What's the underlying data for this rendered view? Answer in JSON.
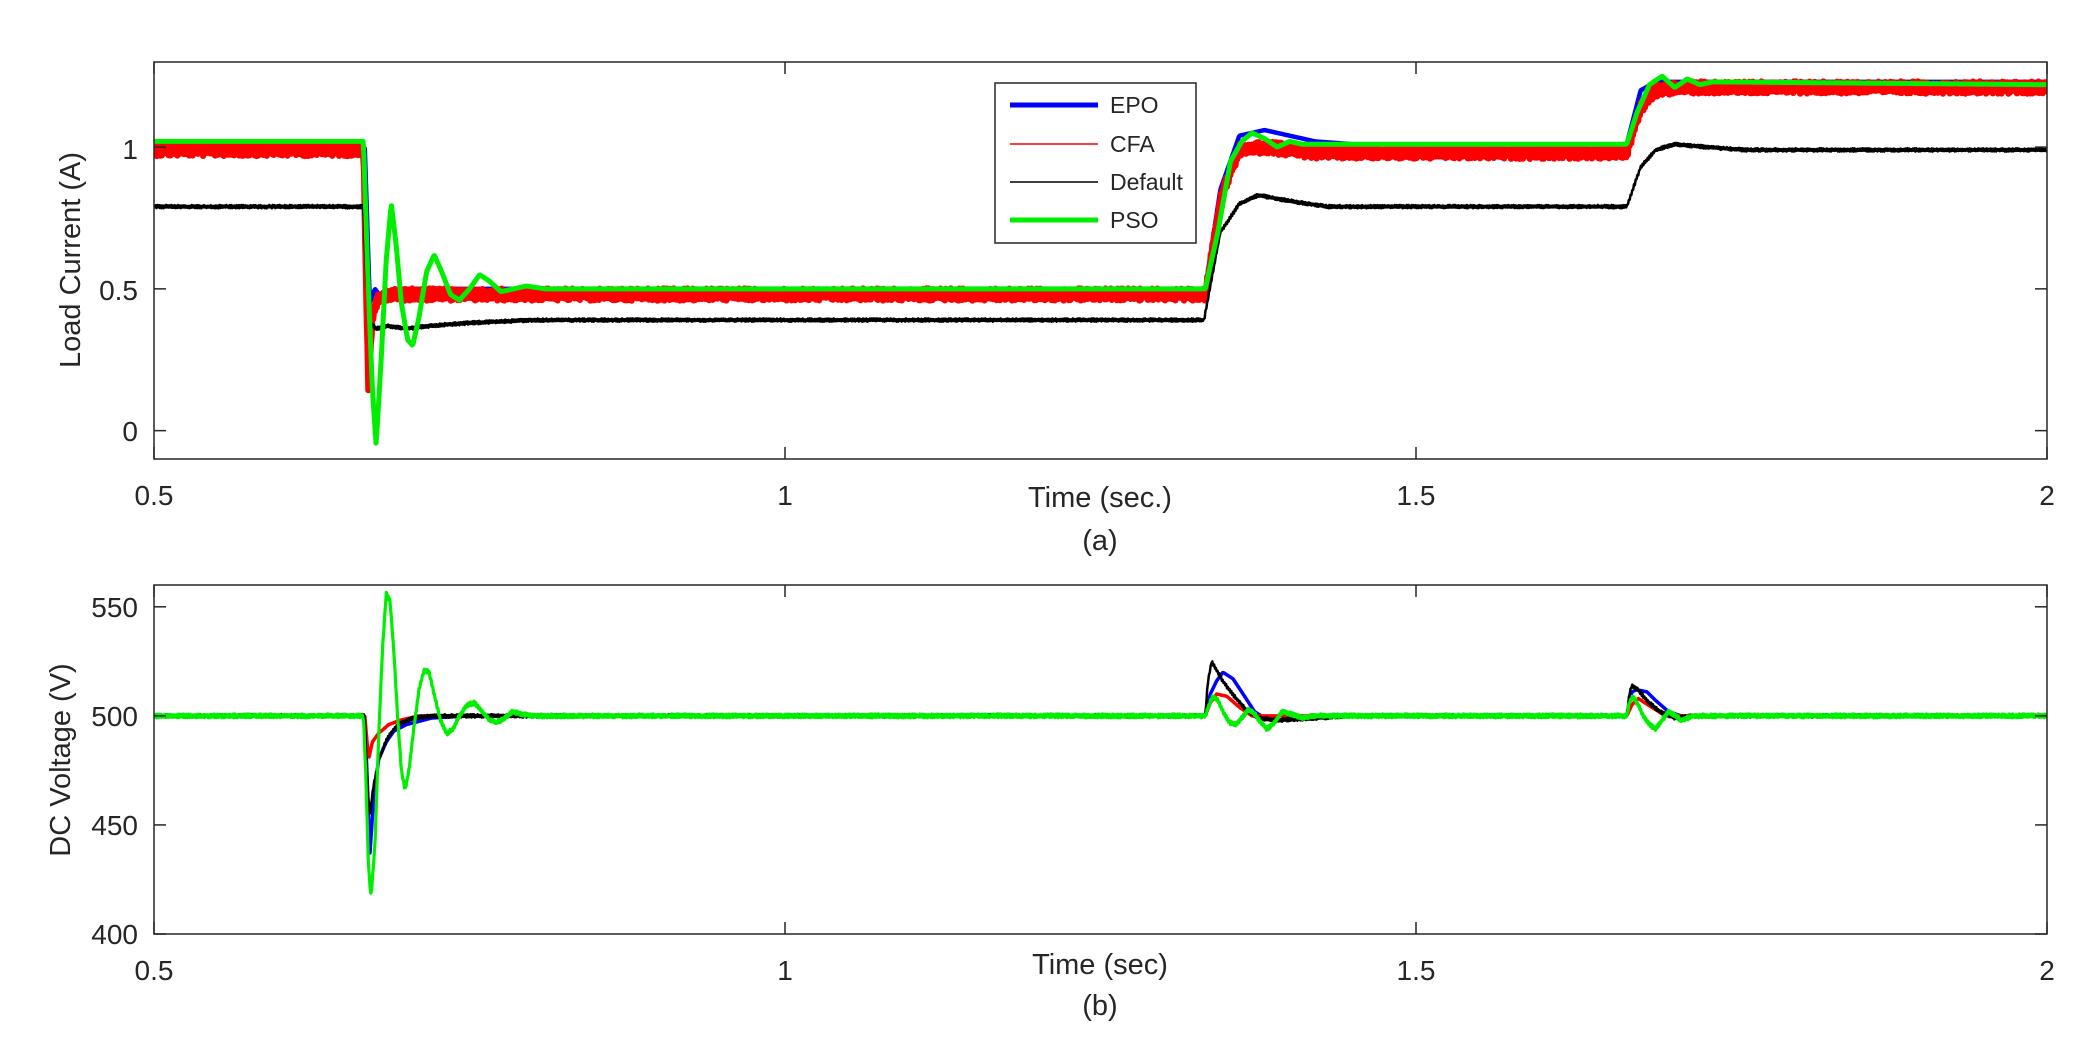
{
  "chart_data": [
    {
      "type": "line",
      "title": "",
      "xlabel": "Time (sec.)",
      "ylabel": "Load Current (A)",
      "caption": "(a)",
      "xlim": [
        0.5,
        2.0
      ],
      "ylim": [
        -0.1,
        1.3
      ],
      "xticks": [
        0.5,
        1,
        1.5,
        2
      ],
      "xtick_labels": [
        "0.5",
        "1",
        "1.5",
        "2"
      ],
      "yticks": [
        0,
        0.5,
        1
      ],
      "ytick_labels": [
        "0",
        "0.5",
        "1"
      ],
      "grid": false,
      "legend": {
        "position": "top-center",
        "entries": [
          "EPO",
          "CFA",
          "Default",
          "PSO"
        ]
      },
      "series": [
        {
          "name": "EPO",
          "color": "#0000ff",
          "width": 4.5,
          "noise": 0.0,
          "points": [
            [
              0.5,
              1.0
            ],
            [
              0.667,
              1.0
            ],
            [
              0.671,
              0.45
            ],
            [
              0.675,
              0.5
            ],
            [
              0.68,
              0.47
            ],
            [
              0.69,
              0.49
            ],
            [
              0.7,
              0.5
            ],
            [
              1.333,
              0.5
            ],
            [
              1.345,
              0.85
            ],
            [
              1.36,
              1.04
            ],
            [
              1.38,
              1.06
            ],
            [
              1.4,
              1.04
            ],
            [
              1.42,
              1.02
            ],
            [
              1.45,
              1.01
            ],
            [
              1.667,
              1.01
            ],
            [
              1.678,
              1.2
            ],
            [
              1.69,
              1.23
            ],
            [
              1.71,
              1.23
            ],
            [
              2.0,
              1.23
            ]
          ]
        },
        {
          "name": "CFA",
          "color": "#ff0000",
          "width": 6,
          "noise": 0.022,
          "points": [
            [
              0.5,
              0.99
            ],
            [
              0.666,
              0.99
            ],
            [
              0.668,
              0.5
            ],
            [
              0.67,
              0.12
            ],
            [
              0.673,
              0.4
            ],
            [
              0.677,
              0.46
            ],
            [
              0.685,
              0.48
            ],
            [
              0.7,
              0.48
            ],
            [
              1.333,
              0.48
            ],
            [
              1.345,
              0.82
            ],
            [
              1.36,
              0.99
            ],
            [
              1.38,
              1.0
            ],
            [
              1.42,
              0.98
            ],
            [
              1.45,
              0.98
            ],
            [
              1.667,
              0.98
            ],
            [
              1.678,
              1.14
            ],
            [
              1.69,
              1.2
            ],
            [
              1.71,
              1.21
            ],
            [
              2.0,
              1.21
            ]
          ]
        },
        {
          "name": "Default",
          "color": "#000000",
          "width": 2.5,
          "noise": 0.006,
          "points": [
            [
              0.5,
              0.79
            ],
            [
              0.666,
              0.79
            ],
            [
              0.668,
              0.55
            ],
            [
              0.671,
              0.38
            ],
            [
              0.676,
              0.36
            ],
            [
              0.685,
              0.37
            ],
            [
              0.7,
              0.36
            ],
            [
              0.72,
              0.37
            ],
            [
              0.75,
              0.38
            ],
            [
              0.8,
              0.39
            ],
            [
              1.332,
              0.39
            ],
            [
              1.345,
              0.7
            ],
            [
              1.36,
              0.8
            ],
            [
              1.375,
              0.83
            ],
            [
              1.4,
              0.81
            ],
            [
              1.43,
              0.79
            ],
            [
              1.46,
              0.79
            ],
            [
              1.667,
              0.79
            ],
            [
              1.678,
              0.93
            ],
            [
              1.69,
              0.99
            ],
            [
              1.705,
              1.01
            ],
            [
              1.73,
              1.0
            ],
            [
              1.76,
              0.99
            ],
            [
              2.0,
              0.99
            ]
          ]
        },
        {
          "name": "PSO",
          "color": "#00ee00",
          "width": 5,
          "noise": 0.0,
          "points": [
            [
              0.5,
              1.02
            ],
            [
              0.666,
              1.02
            ],
            [
              0.669,
              0.6
            ],
            [
              0.673,
              0.15
            ],
            [
              0.676,
              -0.05
            ],
            [
              0.68,
              0.25
            ],
            [
              0.684,
              0.6
            ],
            [
              0.688,
              0.8
            ],
            [
              0.692,
              0.65
            ],
            [
              0.696,
              0.45
            ],
            [
              0.701,
              0.32
            ],
            [
              0.705,
              0.3
            ],
            [
              0.71,
              0.4
            ],
            [
              0.716,
              0.56
            ],
            [
              0.722,
              0.62
            ],
            [
              0.728,
              0.56
            ],
            [
              0.735,
              0.48
            ],
            [
              0.742,
              0.46
            ],
            [
              0.75,
              0.5
            ],
            [
              0.758,
              0.55
            ],
            [
              0.765,
              0.53
            ],
            [
              0.775,
              0.49
            ],
            [
              0.785,
              0.5
            ],
            [
              0.795,
              0.51
            ],
            [
              0.81,
              0.5
            ],
            [
              1.333,
              0.5
            ],
            [
              1.343,
              0.7
            ],
            [
              1.353,
              0.95
            ],
            [
              1.362,
              1.02
            ],
            [
              1.37,
              1.05
            ],
            [
              1.38,
              1.03
            ],
            [
              1.39,
              1.0
            ],
            [
              1.4,
              1.02
            ],
            [
              1.41,
              1.01
            ],
            [
              1.667,
              1.01
            ],
            [
              1.675,
              1.12
            ],
            [
              1.685,
              1.22
            ],
            [
              1.695,
              1.25
            ],
            [
              1.705,
              1.21
            ],
            [
              1.715,
              1.24
            ],
            [
              1.725,
              1.22
            ],
            [
              1.735,
              1.23
            ],
            [
              2.0,
              1.22
            ]
          ]
        }
      ]
    },
    {
      "type": "line",
      "title": "",
      "xlabel": "Time (sec)",
      "ylabel": "DC Voltage (V)",
      "caption": "(b)",
      "xlim": [
        0.5,
        2.0
      ],
      "ylim": [
        400,
        560
      ],
      "xticks": [
        0.5,
        1,
        1.5,
        2
      ],
      "xtick_labels": [
        "0.5",
        "1",
        "1.5",
        "2"
      ],
      "yticks": [
        400,
        450,
        500,
        550
      ],
      "ytick_labels": [
        "400",
        "450",
        "500",
        "550"
      ],
      "grid": false,
      "series": [
        {
          "name": "EPO",
          "color": "#0000ff",
          "width": 3.5,
          "noise": 0.0,
          "points": [
            [
              0.5,
              500
            ],
            [
              0.667,
              500
            ],
            [
              0.669,
              470
            ],
            [
              0.671,
              436
            ],
            [
              0.674,
              462
            ],
            [
              0.678,
              480
            ],
            [
              0.684,
              488
            ],
            [
              0.69,
              493
            ],
            [
              0.7,
              496
            ],
            [
              0.72,
              499
            ],
            [
              0.75,
              500
            ],
            [
              1.333,
              500
            ],
            [
              1.337,
              510
            ],
            [
              1.342,
              516
            ],
            [
              1.347,
              520
            ],
            [
              1.355,
              517
            ],
            [
              1.363,
              510
            ],
            [
              1.372,
              502
            ],
            [
              1.38,
              499
            ],
            [
              1.39,
              498
            ],
            [
              1.41,
              499
            ],
            [
              1.43,
              500
            ],
            [
              1.667,
              500
            ],
            [
              1.671,
              511
            ],
            [
              1.675,
              512
            ],
            [
              1.683,
              511
            ],
            [
              1.69,
              507
            ],
            [
              1.7,
              502
            ],
            [
              1.71,
              500
            ],
            [
              2.0,
              500
            ]
          ]
        },
        {
          "name": "CFA",
          "color": "#ff0000",
          "width": 3.5,
          "noise": 0.0,
          "points": [
            [
              0.5,
              500
            ],
            [
              0.667,
              500
            ],
            [
              0.67,
              480
            ],
            [
              0.673,
              488
            ],
            [
              0.678,
              492
            ],
            [
              0.686,
              496
            ],
            [
              0.695,
              498
            ],
            [
              0.71,
              500
            ],
            [
              1.333,
              500
            ],
            [
              1.337,
              506
            ],
            [
              1.342,
              510
            ],
            [
              1.35,
              509
            ],
            [
              1.36,
              504
            ],
            [
              1.37,
              500
            ],
            [
              1.667,
              500
            ],
            [
              1.671,
              505
            ],
            [
              1.676,
              508
            ],
            [
              1.684,
              505
            ],
            [
              1.695,
              501
            ],
            [
              1.71,
              500
            ],
            [
              2.0,
              500
            ]
          ]
        },
        {
          "name": "Default",
          "color": "#000000",
          "width": 2.5,
          "noise": 0.8,
          "points": [
            [
              0.5,
              500
            ],
            [
              0.667,
              500
            ],
            [
              0.669,
              468
            ],
            [
              0.671,
              455
            ],
            [
              0.674,
              468
            ],
            [
              0.678,
              480
            ],
            [
              0.685,
              490
            ],
            [
              0.693,
              496
            ],
            [
              0.705,
              499
            ],
            [
              0.72,
              500
            ],
            [
              1.333,
              500
            ],
            [
              1.335,
              515
            ],
            [
              1.338,
              525
            ],
            [
              1.342,
              521
            ],
            [
              1.348,
              515
            ],
            [
              1.356,
              509
            ],
            [
              1.365,
              503
            ],
            [
              1.375,
              499
            ],
            [
              1.39,
              498
            ],
            [
              1.42,
              499
            ],
            [
              1.45,
              500
            ],
            [
              1.667,
              500
            ],
            [
              1.669,
              510
            ],
            [
              1.671,
              514
            ],
            [
              1.676,
              512
            ],
            [
              1.683,
              507
            ],
            [
              1.693,
              502
            ],
            [
              1.705,
              499
            ],
            [
              1.72,
              500
            ],
            [
              2.0,
              500
            ]
          ]
        },
        {
          "name": "PSO",
          "color": "#00ee00",
          "width": 3.2,
          "noise": 0.9,
          "points": [
            [
              0.5,
              500
            ],
            [
              0.666,
              500
            ],
            [
              0.668,
              470
            ],
            [
              0.67,
              430
            ],
            [
              0.672,
              417
            ],
            [
              0.675,
              440
            ],
            [
              0.678,
              490
            ],
            [
              0.681,
              530
            ],
            [
              0.684,
              556
            ],
            [
              0.687,
              553
            ],
            [
              0.69,
              530
            ],
            [
              0.693,
              500
            ],
            [
              0.696,
              475
            ],
            [
              0.699,
              466
            ],
            [
              0.702,
              475
            ],
            [
              0.706,
              495
            ],
            [
              0.71,
              512
            ],
            [
              0.714,
              521
            ],
            [
              0.718,
              520
            ],
            [
              0.722,
              510
            ],
            [
              0.727,
              498
            ],
            [
              0.732,
              492
            ],
            [
              0.737,
              494
            ],
            [
              0.742,
              500
            ],
            [
              0.748,
              505
            ],
            [
              0.754,
              506
            ],
            [
              0.76,
              502
            ],
            [
              0.766,
              498
            ],
            [
              0.772,
              497
            ],
            [
              0.778,
              499
            ],
            [
              0.784,
              502
            ],
            [
              0.79,
              501
            ],
            [
              0.8,
              500
            ],
            [
              1.333,
              500
            ],
            [
              1.336,
              505
            ],
            [
              1.339,
              509
            ],
            [
              1.343,
              507
            ],
            [
              1.348,
              501
            ],
            [
              1.352,
              497
            ],
            [
              1.357,
              496
            ],
            [
              1.362,
              499
            ],
            [
              1.367,
              503
            ],
            [
              1.372,
              501
            ],
            [
              1.377,
              497
            ],
            [
              1.382,
              494
            ],
            [
              1.388,
              497
            ],
            [
              1.394,
              502
            ],
            [
              1.4,
              501
            ],
            [
              1.41,
              499
            ],
            [
              1.42,
              500
            ],
            [
              1.667,
              500
            ],
            [
              1.669,
              506
            ],
            [
              1.672,
              509
            ],
            [
              1.676,
              505
            ],
            [
              1.68,
              500
            ],
            [
              1.685,
              496
            ],
            [
              1.69,
              494
            ],
            [
              1.695,
              498
            ],
            [
              1.7,
              502
            ],
            [
              1.706,
              500
            ],
            [
              1.71,
              498
            ],
            [
              1.72,
              500
            ],
            [
              2.0,
              500
            ]
          ]
        }
      ]
    }
  ]
}
